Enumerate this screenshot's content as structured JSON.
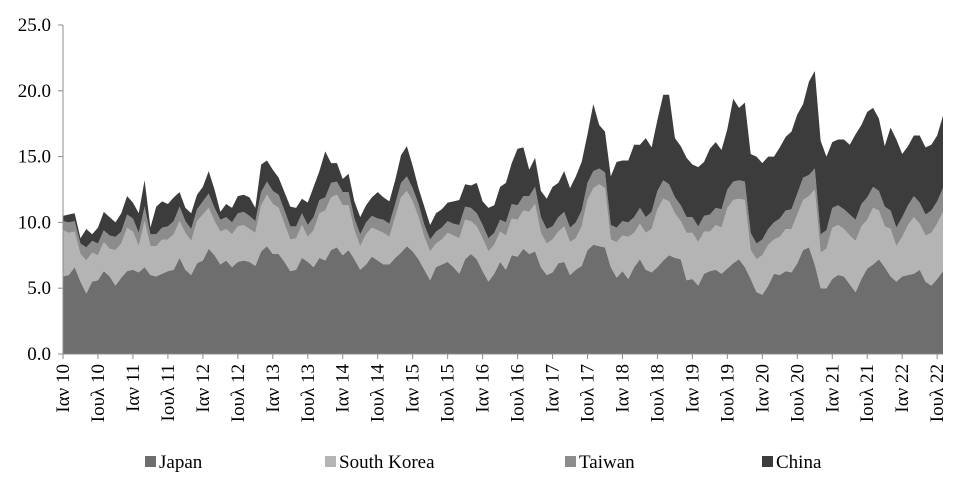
{
  "chart_data": {
    "type": "area",
    "stacked": true,
    "title": "",
    "xlabel": "",
    "ylabel": "",
    "ylim": [
      0,
      25
    ],
    "y_ticks": [
      "0.0",
      "5.0",
      "10.0",
      "15.0",
      "20.0",
      "25.0"
    ],
    "grid": false,
    "legend_position": "bottom",
    "x_tick_labels": [
      "Ιαν 10",
      "Ιουλ 10",
      "Ιαν 11",
      "Ιουλ 11",
      "Ιαν 12",
      "Ιουλ 12",
      "Ιαν 13",
      "Ιουλ 13",
      "Ιαν 14",
      "Ιουλ 14",
      "Ιαν 15",
      "Ιουλ 15",
      "Ιαν 16",
      "Ιουλ 16",
      "Ιαν 17",
      "Ιουλ 17",
      "Ιαν 18",
      "Ιουλ 18",
      "Ιαν 19",
      "Ιουλ 19",
      "Ιαν 20",
      "Ιουλ 20",
      "Ιαν 21",
      "Ιουλ 21",
      "Ιαν 22",
      "Ιουλ 22"
    ],
    "series": [
      {
        "name": "Japan",
        "color": "#6e6e6e",
        "values": [
          5.9,
          6.0,
          6.6,
          5.5,
          4.6,
          5.5,
          5.6,
          6.3,
          5.9,
          5.2,
          5.8,
          6.3,
          6.4,
          6.2,
          6.6,
          6.0,
          5.9,
          6.1,
          6.3,
          6.4,
          7.3,
          6.4,
          6.0,
          6.9,
          7.1,
          8.0,
          7.5,
          6.8,
          7.1,
          6.6,
          7.0,
          7.1,
          7.0,
          6.7,
          7.8,
          8.2,
          7.6,
          7.6,
          7.0,
          6.3,
          6.4,
          7.3,
          7.0,
          6.6,
          7.3,
          7.1,
          7.9,
          8.1,
          7.5,
          7.9,
          7.2,
          6.4,
          6.8,
          7.4,
          7.1,
          6.8,
          6.8,
          7.3,
          7.7,
          8.2,
          7.8,
          7.2,
          6.4,
          5.6,
          6.6,
          6.8,
          7.0,
          6.6,
          6.1,
          7.2,
          7.6,
          7.2,
          6.3,
          5.5,
          6.1,
          7.0,
          6.4,
          7.5,
          7.4,
          8.0,
          7.6,
          7.8,
          6.6,
          6.0,
          6.2,
          6.9,
          7.0,
          6.0,
          6.4,
          6.7,
          7.9,
          8.3,
          8.2,
          8.1,
          6.6,
          5.8,
          6.3,
          5.7,
          6.6,
          7.2,
          6.4,
          6.2,
          6.6,
          7.1,
          7.5,
          7.3,
          7.2,
          5.6,
          5.7,
          5.2,
          6.1,
          6.3,
          6.4,
          6.1,
          6.5,
          6.9,
          7.2,
          6.6,
          5.7,
          4.7,
          4.5,
          5.2,
          6.1,
          6.0,
          6.3,
          6.2,
          6.9,
          7.9,
          8.1,
          6.8,
          5.0,
          5.0,
          5.7,
          6.0,
          5.9,
          5.3,
          4.7,
          5.7,
          6.5,
          6.8,
          7.2,
          6.6,
          5.9,
          5.5,
          5.9,
          6.0,
          6.1,
          6.4,
          5.5,
          5.2,
          5.7,
          6.3
        ]
      },
      {
        "name": "South Korea",
        "color": "#b4b4b4",
        "values": [
          3.5,
          3.2,
          2.7,
          2.1,
          2.5,
          2.2,
          1.9,
          2.2,
          2.1,
          2.7,
          2.6,
          3.3,
          2.9,
          2.0,
          3.5,
          2.2,
          2.3,
          2.6,
          2.4,
          2.7,
          2.8,
          2.8,
          2.6,
          3.2,
          3.5,
          3.1,
          2.6,
          2.5,
          2.4,
          2.5,
          2.7,
          2.7,
          2.5,
          2.5,
          3.5,
          3.9,
          3.8,
          3.5,
          2.9,
          2.4,
          2.4,
          2.5,
          1.9,
          2.8,
          3.4,
          3.8,
          4.0,
          4.0,
          3.8,
          3.4,
          2.2,
          1.8,
          2.3,
          2.2,
          2.3,
          2.4,
          2.1,
          3.1,
          4.2,
          4.2,
          3.8,
          3.2,
          2.5,
          2.2,
          1.8,
          1.9,
          2.2,
          2.4,
          2.7,
          3.0,
          2.5,
          2.5,
          2.5,
          2.3,
          2.2,
          2.3,
          2.6,
          2.8,
          2.8,
          2.9,
          3.2,
          3.6,
          2.6,
          2.4,
          2.5,
          2.4,
          2.7,
          2.5,
          2.4,
          3.0,
          3.8,
          4.3,
          4.7,
          4.5,
          2.1,
          2.7,
          2.7,
          3.2,
          2.6,
          2.7,
          2.8,
          3.3,
          4.4,
          4.7,
          4.1,
          3.4,
          2.9,
          3.6,
          3.5,
          3.3,
          3.2,
          3.0,
          3.4,
          3.5,
          4.6,
          4.8,
          4.6,
          5.1,
          2.2,
          2.5,
          3.0,
          3.1,
          2.6,
          2.9,
          3.2,
          3.3,
          3.7,
          3.8,
          3.9,
          5.7,
          2.7,
          3.0,
          3.9,
          3.8,
          3.6,
          3.7,
          3.9,
          4.0,
          3.7,
          4.3,
          3.7,
          3.1,
          3.6,
          2.7,
          3.0,
          3.8,
          4.3,
          3.5,
          3.5,
          4.0,
          4.2,
          4.5
        ]
      },
      {
        "name": "Taiwan",
        "color": "#8c8c8c",
        "values": [
          0.7,
          0.8,
          0.8,
          0.8,
          1.0,
          0.9,
          0.9,
          0.9,
          1.0,
          1.0,
          0.9,
          1.0,
          1.0,
          1.0,
          1.1,
          0.9,
          0.9,
          0.9,
          1.0,
          1.0,
          1.1,
          0.9,
          0.9,
          0.9,
          1.0,
          1.1,
          1.0,
          0.9,
          0.9,
          0.9,
          1.0,
          1.0,
          1.0,
          0.9,
          1.0,
          1.0,
          1.0,
          1.0,
          1.0,
          1.0,
          0.9,
          0.9,
          0.9,
          1.0,
          1.0,
          1.0,
          1.1,
          1.0,
          1.0,
          1.0,
          0.9,
          0.9,
          0.9,
          0.9,
          0.9,
          1.0,
          1.0,
          1.0,
          1.1,
          1.1,
          1.0,
          1.0,
          0.9,
          0.9,
          0.9,
          0.9,
          0.9,
          0.9,
          1.0,
          1.0,
          1.0,
          1.0,
          1.0,
          1.0,
          0.9,
          0.9,
          1.0,
          1.1,
          1.1,
          1.1,
          1.2,
          1.3,
          1.2,
          1.1,
          1.0,
          1.1,
          1.1,
          1.1,
          1.2,
          1.2,
          1.3,
          1.3,
          1.2,
          1.2,
          1.1,
          1.1,
          1.1,
          1.1,
          1.2,
          1.2,
          1.2,
          1.3,
          1.4,
          1.4,
          1.3,
          1.2,
          1.2,
          1.2,
          1.2,
          1.2,
          1.2,
          1.3,
          1.3,
          1.4,
          1.4,
          1.4,
          1.4,
          1.4,
          1.3,
          1.2,
          1.2,
          1.2,
          1.3,
          1.4,
          1.4,
          1.5,
          1.6,
          1.7,
          1.6,
          1.6,
          1.4,
          1.4,
          1.5,
          1.5,
          1.5,
          1.6,
          1.6,
          1.7,
          1.7,
          1.6,
          1.5,
          1.5,
          1.4,
          1.4,
          1.5,
          1.5,
          1.6,
          1.6,
          1.6,
          1.7,
          1.7,
          1.8
        ]
      },
      {
        "name": "China",
        "color": "#3c3c3c",
        "values": [
          0.4,
          0.6,
          0.6,
          0.4,
          1.4,
          0.5,
          1.2,
          1.4,
          1.4,
          1.1,
          1.4,
          1.4,
          1.2,
          1.5,
          2.0,
          0.5,
          2.1,
          2.0,
          1.7,
          1.8,
          1.1,
          1.0,
          1.2,
          1.1,
          1.1,
          1.7,
          1.4,
          0.6,
          1.0,
          1.1,
          1.3,
          1.3,
          1.4,
          1.0,
          2.1,
          1.6,
          1.6,
          1.3,
          1.4,
          1.5,
          1.4,
          1.1,
          1.7,
          2.3,
          2.2,
          3.5,
          1.5,
          1.4,
          1.0,
          1.4,
          1.3,
          1.3,
          1.3,
          1.4,
          2.0,
          1.7,
          1.7,
          1.8,
          2.1,
          2.3,
          1.7,
          1.2,
          1.4,
          1.1,
          1.4,
          1.4,
          1.4,
          1.7,
          1.9,
          1.7,
          1.7,
          2.3,
          1.8,
          2.3,
          2.1,
          2.5,
          3.0,
          3.1,
          4.3,
          3.7,
          2.0,
          2.2,
          2.0,
          2.3,
          3.0,
          2.6,
          3.1,
          3.0,
          3.5,
          3.7,
          3.7,
          5.1,
          3.3,
          3.1,
          3.7,
          5.0,
          4.6,
          4.7,
          5.5,
          4.8,
          6.0,
          4.9,
          5.4,
          6.5,
          6.8,
          4.5,
          4.5,
          4.5,
          4.0,
          4.5,
          4.1,
          5.0,
          5.0,
          4.5,
          4.6,
          6.3,
          5.5,
          6.0,
          6.0,
          6.6,
          5.8,
          5.5,
          5.0,
          5.4,
          5.6,
          5.9,
          6.0,
          5.6,
          7.1,
          7.4,
          7.1,
          5.6,
          5.0,
          5.0,
          5.3,
          5.3,
          6.5,
          6.0,
          6.5,
          6.0,
          5.5,
          4.6,
          6.3,
          6.7,
          4.8,
          4.5,
          4.6,
          5.1,
          5.1,
          5.0,
          5.0,
          5.5,
          5.7,
          5.6
        ]
      }
    ]
  }
}
